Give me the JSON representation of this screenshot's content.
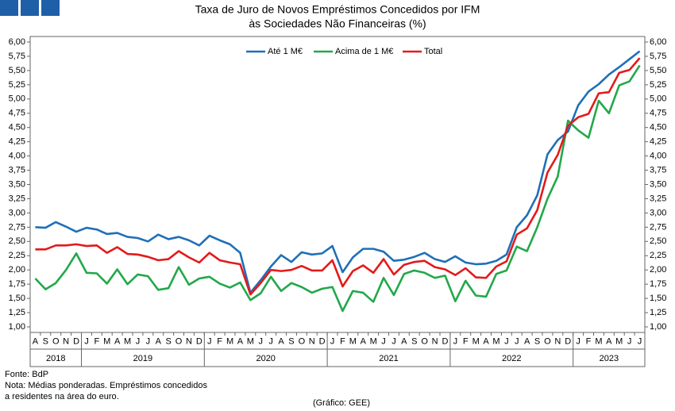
{
  "chart_data": {
    "type": "line",
    "title": [
      "Taxa de Juro de Novos Empréstimos Concedidos por IFM",
      "às Sociedades Não Financeiras (%)"
    ],
    "categories": [
      "A",
      "S",
      "O",
      "N",
      "D",
      "J",
      "F",
      "M",
      "A",
      "M",
      "J",
      "J",
      "A",
      "S",
      "O",
      "N",
      "D",
      "J",
      "F",
      "M",
      "A",
      "M",
      "J",
      "J",
      "A",
      "S",
      "O",
      "N",
      "D",
      "J",
      "F",
      "M",
      "A",
      "M",
      "J",
      "J",
      "A",
      "S",
      "O",
      "N",
      "D",
      "J",
      "F",
      "M",
      "A",
      "M",
      "J",
      "J",
      "A",
      "S",
      "O",
      "N",
      "D",
      "J",
      "F",
      "M",
      "A",
      "M",
      "J",
      "J"
    ],
    "years": [
      "2018",
      "2019",
      "2020",
      "2021",
      "2022",
      "2023"
    ],
    "series": [
      {
        "name": "Até 1 M€",
        "color": "#1f6fb8",
        "values": [
          2.75,
          2.74,
          2.84,
          2.76,
          2.67,
          2.74,
          2.71,
          2.63,
          2.65,
          2.58,
          2.56,
          2.5,
          2.62,
          2.54,
          2.58,
          2.52,
          2.43,
          2.6,
          2.52,
          2.45,
          2.3,
          1.6,
          1.82,
          2.06,
          2.26,
          2.14,
          2.31,
          2.27,
          2.29,
          2.42,
          1.96,
          2.22,
          2.37,
          2.37,
          2.32,
          2.16,
          2.18,
          2.23,
          2.3,
          2.19,
          2.14,
          2.24,
          2.13,
          2.1,
          2.11,
          2.16,
          2.27,
          2.75,
          2.96,
          3.31,
          4.03,
          4.28,
          4.43,
          4.89,
          5.13,
          5.26,
          5.43,
          5.56,
          5.7,
          5.84
        ]
      },
      {
        "name": "Acima de 1 M€",
        "color": "#22a84a",
        "values": [
          1.85,
          1.66,
          1.77,
          2.0,
          2.29,
          1.95,
          1.94,
          1.76,
          2.01,
          1.75,
          1.92,
          1.89,
          1.65,
          1.68,
          2.05,
          1.74,
          1.85,
          1.88,
          1.76,
          1.69,
          1.78,
          1.47,
          1.59,
          1.88,
          1.63,
          1.77,
          1.7,
          1.6,
          1.67,
          1.7,
          1.28,
          1.63,
          1.6,
          1.44,
          1.86,
          1.56,
          1.93,
          1.99,
          1.95,
          1.86,
          1.9,
          1.45,
          1.81,
          1.55,
          1.53,
          1.93,
          1.99,
          2.41,
          2.33,
          2.75,
          3.25,
          3.64,
          4.62,
          4.45,
          4.32,
          4.97,
          4.75,
          5.24,
          5.31,
          5.59
        ]
      },
      {
        "name": "Total",
        "color": "#e31a1c",
        "values": [
          2.36,
          2.36,
          2.43,
          2.43,
          2.45,
          2.42,
          2.43,
          2.3,
          2.4,
          2.28,
          2.27,
          2.23,
          2.17,
          2.19,
          2.33,
          2.22,
          2.13,
          2.3,
          2.17,
          2.13,
          2.1,
          1.57,
          1.77,
          2.0,
          1.98,
          2.0,
          2.07,
          1.99,
          1.99,
          2.17,
          1.71,
          1.98,
          2.08,
          1.95,
          2.19,
          1.92,
          2.09,
          2.14,
          2.16,
          2.05,
          2.01,
          1.91,
          2.03,
          1.87,
          1.86,
          2.06,
          2.15,
          2.62,
          2.73,
          3.05,
          3.71,
          4.02,
          4.53,
          4.68,
          4.74,
          5.1,
          5.12,
          5.46,
          5.51,
          5.72
        ]
      }
    ],
    "ylim": [
      1,
      6
    ],
    "yticks": [
      {
        "value": 1,
        "label": "1,00"
      },
      {
        "value": 1.25,
        "label": "1,25"
      },
      {
        "value": 1.5,
        "label": "1,50"
      },
      {
        "value": 1.75,
        "label": "1,75"
      },
      {
        "value": 2,
        "label": "2,00"
      },
      {
        "value": 2.25,
        "label": "2,25"
      },
      {
        "value": 2.5,
        "label": "2,50"
      },
      {
        "value": 2.75,
        "label": "2,75"
      },
      {
        "value": 3,
        "label": "3,00"
      },
      {
        "value": 3.25,
        "label": "3,25"
      },
      {
        "value": 3.5,
        "label": "3,50"
      },
      {
        "value": 3.75,
        "label": "3,75"
      },
      {
        "value": 4,
        "label": "4,00"
      },
      {
        "value": 4.25,
        "label": "4,25"
      },
      {
        "value": 4.5,
        "label": "4,50"
      },
      {
        "value": 4.75,
        "label": "4,75"
      },
      {
        "value": 5,
        "label": "5,00"
      },
      {
        "value": 5.25,
        "label": "5,25"
      },
      {
        "value": 5.5,
        "label": "5,50"
      },
      {
        "value": 5.75,
        "label": "5,75"
      },
      {
        "value": 6,
        "label": "6,00"
      }
    ],
    "y2lim": [
      1,
      6
    ],
    "y2ticks": [
      {
        "value": 1,
        "label": "1,00"
      },
      {
        "value": 1.25,
        "label": "1,25"
      },
      {
        "value": 1.5,
        "label": "1,50"
      },
      {
        "value": 1.75,
        "label": "1,75"
      },
      {
        "value": 2,
        "label": "2,00"
      },
      {
        "value": 2.25,
        "label": "2,25"
      },
      {
        "value": 2.5,
        "label": "2,50"
      },
      {
        "value": 2.75,
        "label": "2,75"
      },
      {
        "value": 3,
        "label": "3,00"
      },
      {
        "value": 3.25,
        "label": "3,25"
      },
      {
        "value": 3.5,
        "label": "3,50"
      },
      {
        "value": 3.75,
        "label": "3,75"
      },
      {
        "value": 4,
        "label": "4,00"
      },
      {
        "value": 4.25,
        "label": "4,25"
      },
      {
        "value": 4.5,
        "label": "4,50"
      },
      {
        "value": 4.75,
        "label": "4,75"
      },
      {
        "value": 5,
        "label": "5,00"
      },
      {
        "value": 5.25,
        "label": "5,25"
      },
      {
        "value": 5.5,
        "label": "5,50"
      },
      {
        "value": 5.75,
        "label": "5,75"
      },
      {
        "value": 6,
        "label": "6,00"
      }
    ],
    "grid": false,
    "legend": "top",
    "notes": [
      "Fonte: BdP",
      "Nota: Médias ponderadas. Empréstimos concedidos",
      "a residentes na área do euro."
    ],
    "credit": "(Gráfico: GEE)"
  }
}
